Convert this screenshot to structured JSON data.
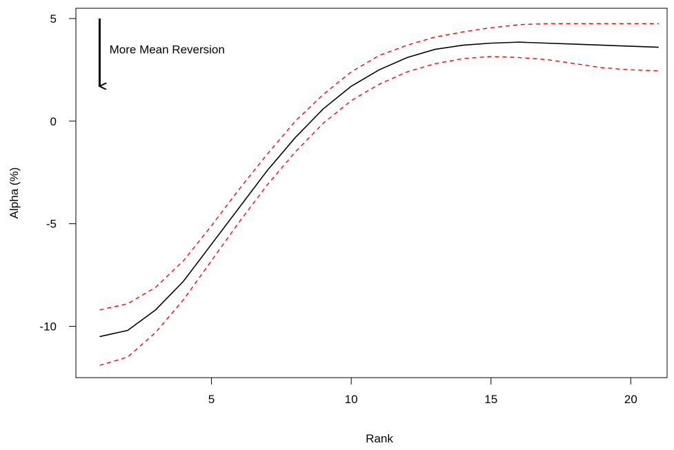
{
  "chart_data": {
    "type": "line",
    "xlabel": "Rank",
    "ylabel": "Alpha (%)",
    "xlim": [
      0.15,
      21.3
    ],
    "ylim": [
      -12.5,
      5.5
    ],
    "x_ticks": [
      5,
      10,
      15,
      20
    ],
    "y_ticks": [
      -10,
      -5,
      0,
      5
    ],
    "x_tick_labels": [
      "5",
      "10",
      "15",
      "20"
    ],
    "y_tick_labels": [
      "-10",
      "-5",
      "0",
      "5"
    ],
    "grid": false,
    "legend": "none",
    "x": [
      1,
      2,
      3,
      4,
      5,
      6,
      7,
      8,
      9,
      10,
      11,
      12,
      13,
      14,
      15,
      16,
      17,
      18,
      19,
      20,
      21
    ],
    "series": [
      {
        "style": "solid",
        "color": "#000000",
        "values": [
          -10.5,
          -10.2,
          -9.2,
          -7.8,
          -6.0,
          -4.2,
          -2.4,
          -0.8,
          0.6,
          1.7,
          2.5,
          3.1,
          3.5,
          3.7,
          3.8,
          3.85,
          3.8,
          3.75,
          3.7,
          3.65,
          3.6
        ]
      },
      {
        "style": "dashed",
        "color": "#ff0000",
        "values": [
          -9.2,
          -8.9,
          -8.1,
          -6.8,
          -5.1,
          -3.3,
          -1.6,
          0.0,
          1.3,
          2.4,
          3.2,
          3.7,
          4.1,
          4.35,
          4.55,
          4.7,
          4.75,
          4.75,
          4.75,
          4.75,
          4.75
        ]
      },
      {
        "style": "dashed",
        "color": "#ff0000",
        "values": [
          -11.9,
          -11.5,
          -10.3,
          -8.7,
          -6.8,
          -4.9,
          -3.1,
          -1.5,
          -0.1,
          1.0,
          1.8,
          2.4,
          2.8,
          3.05,
          3.15,
          3.1,
          3.0,
          2.8,
          2.6,
          2.5,
          2.45
        ]
      }
    ],
    "annotation": {
      "text": "More Mean Reversion",
      "arrow": "down",
      "arrow_x": 1.0,
      "arrow_y_from": 5.0,
      "arrow_y_to": 1.7,
      "text_x": 1.35,
      "text_y": 3.5
    }
  }
}
